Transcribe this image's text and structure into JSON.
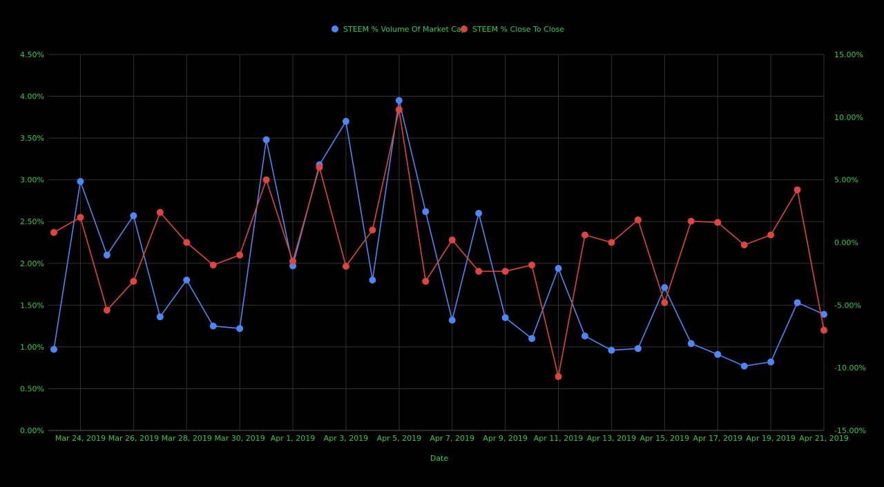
{
  "chart_data": {
    "type": "line",
    "xlabel": "Date",
    "grid": true,
    "legend_position": "top",
    "x": [
      "2019-03-23",
      "2019-03-24",
      "2019-03-25",
      "2019-03-26",
      "2019-03-27",
      "2019-03-28",
      "2019-03-29",
      "2019-03-30",
      "2019-03-31",
      "2019-04-01",
      "2019-04-02",
      "2019-04-03",
      "2019-04-04",
      "2019-04-05",
      "2019-04-06",
      "2019-04-07",
      "2019-04-08",
      "2019-04-09",
      "2019-04-10",
      "2019-04-11",
      "2019-04-12",
      "2019-04-13",
      "2019-04-14",
      "2019-04-15",
      "2019-04-16",
      "2019-04-17",
      "2019-04-18",
      "2019-04-19",
      "2019-04-20",
      "2019-04-21"
    ],
    "x_tick_labels": [
      "Mar 24, 2019",
      "Mar 26, 2019",
      "Mar 28, 2019",
      "Mar 30, 2019",
      "Apr 1, 2019",
      "Apr 3, 2019",
      "Apr 5, 2019",
      "Apr 7, 2019",
      "Apr 9, 2019",
      "Apr 11, 2019",
      "Apr 13, 2019",
      "Apr 15, 2019",
      "Apr 17, 2019",
      "Apr 19, 2019",
      "Apr 21, 2019"
    ],
    "y_left": {
      "range": [
        0,
        4.5
      ],
      "ticks": [
        "0.00%",
        "0.50%",
        "1.00%",
        "1.50%",
        "2.00%",
        "2.50%",
        "3.00%",
        "3.50%",
        "4.00%",
        "4.50%"
      ]
    },
    "y_right": {
      "range": [
        -15,
        15
      ],
      "ticks": [
        "-15.00%",
        "-10.00%",
        "-5.00%",
        "0.00%",
        "5.00%",
        "10.00%",
        "15.00%"
      ]
    },
    "series": [
      {
        "name": "STEEM % Volume Of Market Cap",
        "axis": "left",
        "color": "#4f86f7",
        "values": [
          0.97,
          2.98,
          2.1,
          2.57,
          1.36,
          1.8,
          1.25,
          1.22,
          3.48,
          1.97,
          3.18,
          3.7,
          1.8,
          3.95,
          2.62,
          1.32,
          2.6,
          1.35,
          1.1,
          1.94,
          1.13,
          0.96,
          0.98,
          1.71,
          1.04,
          0.91,
          0.77,
          0.82,
          1.53,
          1.39
        ]
      },
      {
        "name": "STEEM % Close To Close",
        "axis": "right",
        "color": "#e0443e",
        "values": [
          0.8,
          2.0,
          -5.4,
          -3.1,
          2.4,
          0.0,
          -1.8,
          -1.0,
          5.0,
          -1.5,
          6.0,
          -1.9,
          1.0,
          10.6,
          -3.1,
          0.2,
          -2.3,
          -2.3,
          -1.8,
          -10.7,
          0.6,
          0.0,
          1.8,
          -4.8,
          1.7,
          1.6,
          -0.2,
          0.6,
          4.2,
          -7.0
        ]
      }
    ]
  }
}
